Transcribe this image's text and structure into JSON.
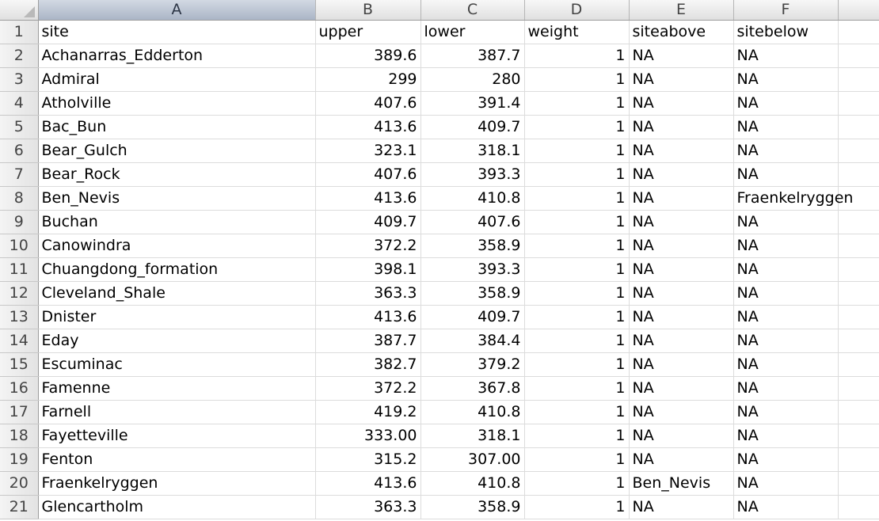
{
  "columns": [
    "A",
    "B",
    "C",
    "D",
    "E",
    "F"
  ],
  "header_row": {
    "num": "1",
    "cells": [
      "site",
      "upper",
      "lower",
      "weight",
      "siteabove",
      "sitebelow"
    ]
  },
  "rows": [
    {
      "num": "2",
      "site": "Achanarras_Edderton",
      "upper": "389.6",
      "lower": "387.7",
      "weight": "1",
      "siteabove": "NA",
      "sitebelow": "NA"
    },
    {
      "num": "3",
      "site": "Admiral",
      "upper": "299",
      "lower": "280",
      "weight": "1",
      "siteabove": "NA",
      "sitebelow": "NA"
    },
    {
      "num": "4",
      "site": "Atholville",
      "upper": "407.6",
      "lower": "391.4",
      "weight": "1",
      "siteabove": "NA",
      "sitebelow": "NA"
    },
    {
      "num": "5",
      "site": "Bac_Bun",
      "upper": "413.6",
      "lower": "409.7",
      "weight": "1",
      "siteabove": "NA",
      "sitebelow": "NA"
    },
    {
      "num": "6",
      "site": "Bear_Gulch",
      "upper": "323.1",
      "lower": "318.1",
      "weight": "1",
      "siteabove": "NA",
      "sitebelow": "NA"
    },
    {
      "num": "7",
      "site": "Bear_Rock",
      "upper": "407.6",
      "lower": "393.3",
      "weight": "1",
      "siteabove": "NA",
      "sitebelow": "NA"
    },
    {
      "num": "8",
      "site": "Ben_Nevis",
      "upper": "413.6",
      "lower": "410.8",
      "weight": "1",
      "siteabove": "NA",
      "sitebelow": "Fraenkelryggen"
    },
    {
      "num": "9",
      "site": "Buchan",
      "upper": "409.7",
      "lower": "407.6",
      "weight": "1",
      "siteabove": "NA",
      "sitebelow": "NA"
    },
    {
      "num": "10",
      "site": "Canowindra",
      "upper": "372.2",
      "lower": "358.9",
      "weight": "1",
      "siteabove": "NA",
      "sitebelow": "NA"
    },
    {
      "num": "11",
      "site": "Chuangdong_formation",
      "upper": "398.1",
      "lower": "393.3",
      "weight": "1",
      "siteabove": "NA",
      "sitebelow": "NA"
    },
    {
      "num": "12",
      "site": "Cleveland_Shale",
      "upper": "363.3",
      "lower": "358.9",
      "weight": "1",
      "siteabove": "NA",
      "sitebelow": "NA"
    },
    {
      "num": "13",
      "site": "Dnister",
      "upper": "413.6",
      "lower": "409.7",
      "weight": "1",
      "siteabove": "NA",
      "sitebelow": "NA"
    },
    {
      "num": "14",
      "site": "Eday",
      "upper": "387.7",
      "lower": "384.4",
      "weight": "1",
      "siteabove": "NA",
      "sitebelow": "NA"
    },
    {
      "num": "15",
      "site": "Escuminac",
      "upper": "382.7",
      "lower": "379.2",
      "weight": "1",
      "siteabove": "NA",
      "sitebelow": "NA"
    },
    {
      "num": "16",
      "site": "Famenne",
      "upper": "372.2",
      "lower": "367.8",
      "weight": "1",
      "siteabove": "NA",
      "sitebelow": "NA"
    },
    {
      "num": "17",
      "site": "Farnell",
      "upper": "419.2",
      "lower": "410.8",
      "weight": "1",
      "siteabove": "NA",
      "sitebelow": "NA"
    },
    {
      "num": "18",
      "site": "Fayetteville",
      "upper": "333.00",
      "lower": "318.1",
      "weight": "1",
      "siteabove": "NA",
      "sitebelow": "NA"
    },
    {
      "num": "19",
      "site": "Fenton",
      "upper": "315.2",
      "lower": "307.00",
      "weight": "1",
      "siteabove": "NA",
      "sitebelow": "NA"
    },
    {
      "num": "20",
      "site": "Fraenkelryggen",
      "upper": "413.6",
      "lower": "410.8",
      "weight": "1",
      "siteabove": "Ben_Nevis",
      "sitebelow": "NA"
    },
    {
      "num": "21",
      "site": "Glencartholm",
      "upper": "363.3",
      "lower": "358.9",
      "weight": "1",
      "siteabove": "NA",
      "sitebelow": "NA"
    }
  ]
}
